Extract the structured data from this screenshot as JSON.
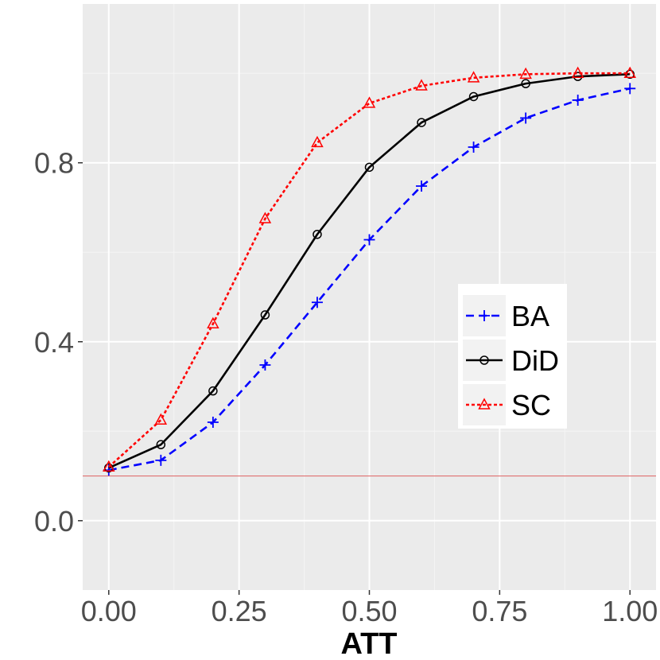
{
  "chart_data": {
    "type": "line",
    "title": "",
    "xlabel": "ATT",
    "ylabel": "",
    "xlim": [
      -0.05,
      1.05
    ],
    "ylim": [
      -0.155,
      1.155
    ],
    "x_ticks": [
      "0.00",
      "0.25",
      "0.50",
      "0.75",
      "1.00"
    ],
    "x_tick_values": [
      0.0,
      0.25,
      0.5,
      0.75,
      1.0
    ],
    "y_ticks": [
      "0.0",
      "0.4",
      "0.8"
    ],
    "y_tick_values": [
      0.0,
      0.4,
      0.8
    ],
    "grid": true,
    "panel_background": "#ebebeb",
    "legend_position": "right",
    "reference_line": {
      "y": 0.1,
      "color": "#e07070"
    },
    "x": [
      0.0,
      0.1,
      0.2,
      0.3,
      0.4,
      0.5,
      0.6,
      0.7,
      0.8,
      0.9,
      1.0
    ],
    "series": [
      {
        "name": "BA",
        "color": "#0000ff",
        "dash": "dashed",
        "marker": "plus",
        "values": [
          0.113,
          0.135,
          0.22,
          0.348,
          0.488,
          0.628,
          0.748,
          0.835,
          0.9,
          0.94,
          0.966
        ]
      },
      {
        "name": "DiD",
        "color": "#000000",
        "dash": "solid",
        "marker": "circle",
        "values": [
          0.118,
          0.17,
          0.29,
          0.46,
          0.64,
          0.79,
          0.89,
          0.948,
          0.977,
          0.993,
          0.998
        ]
      },
      {
        "name": "SC",
        "color": "#ff0000",
        "dash": "dotted",
        "marker": "triangle",
        "values": [
          0.12,
          0.225,
          0.44,
          0.675,
          0.845,
          0.933,
          0.972,
          0.99,
          0.998,
          1.0,
          1.0
        ]
      }
    ]
  }
}
